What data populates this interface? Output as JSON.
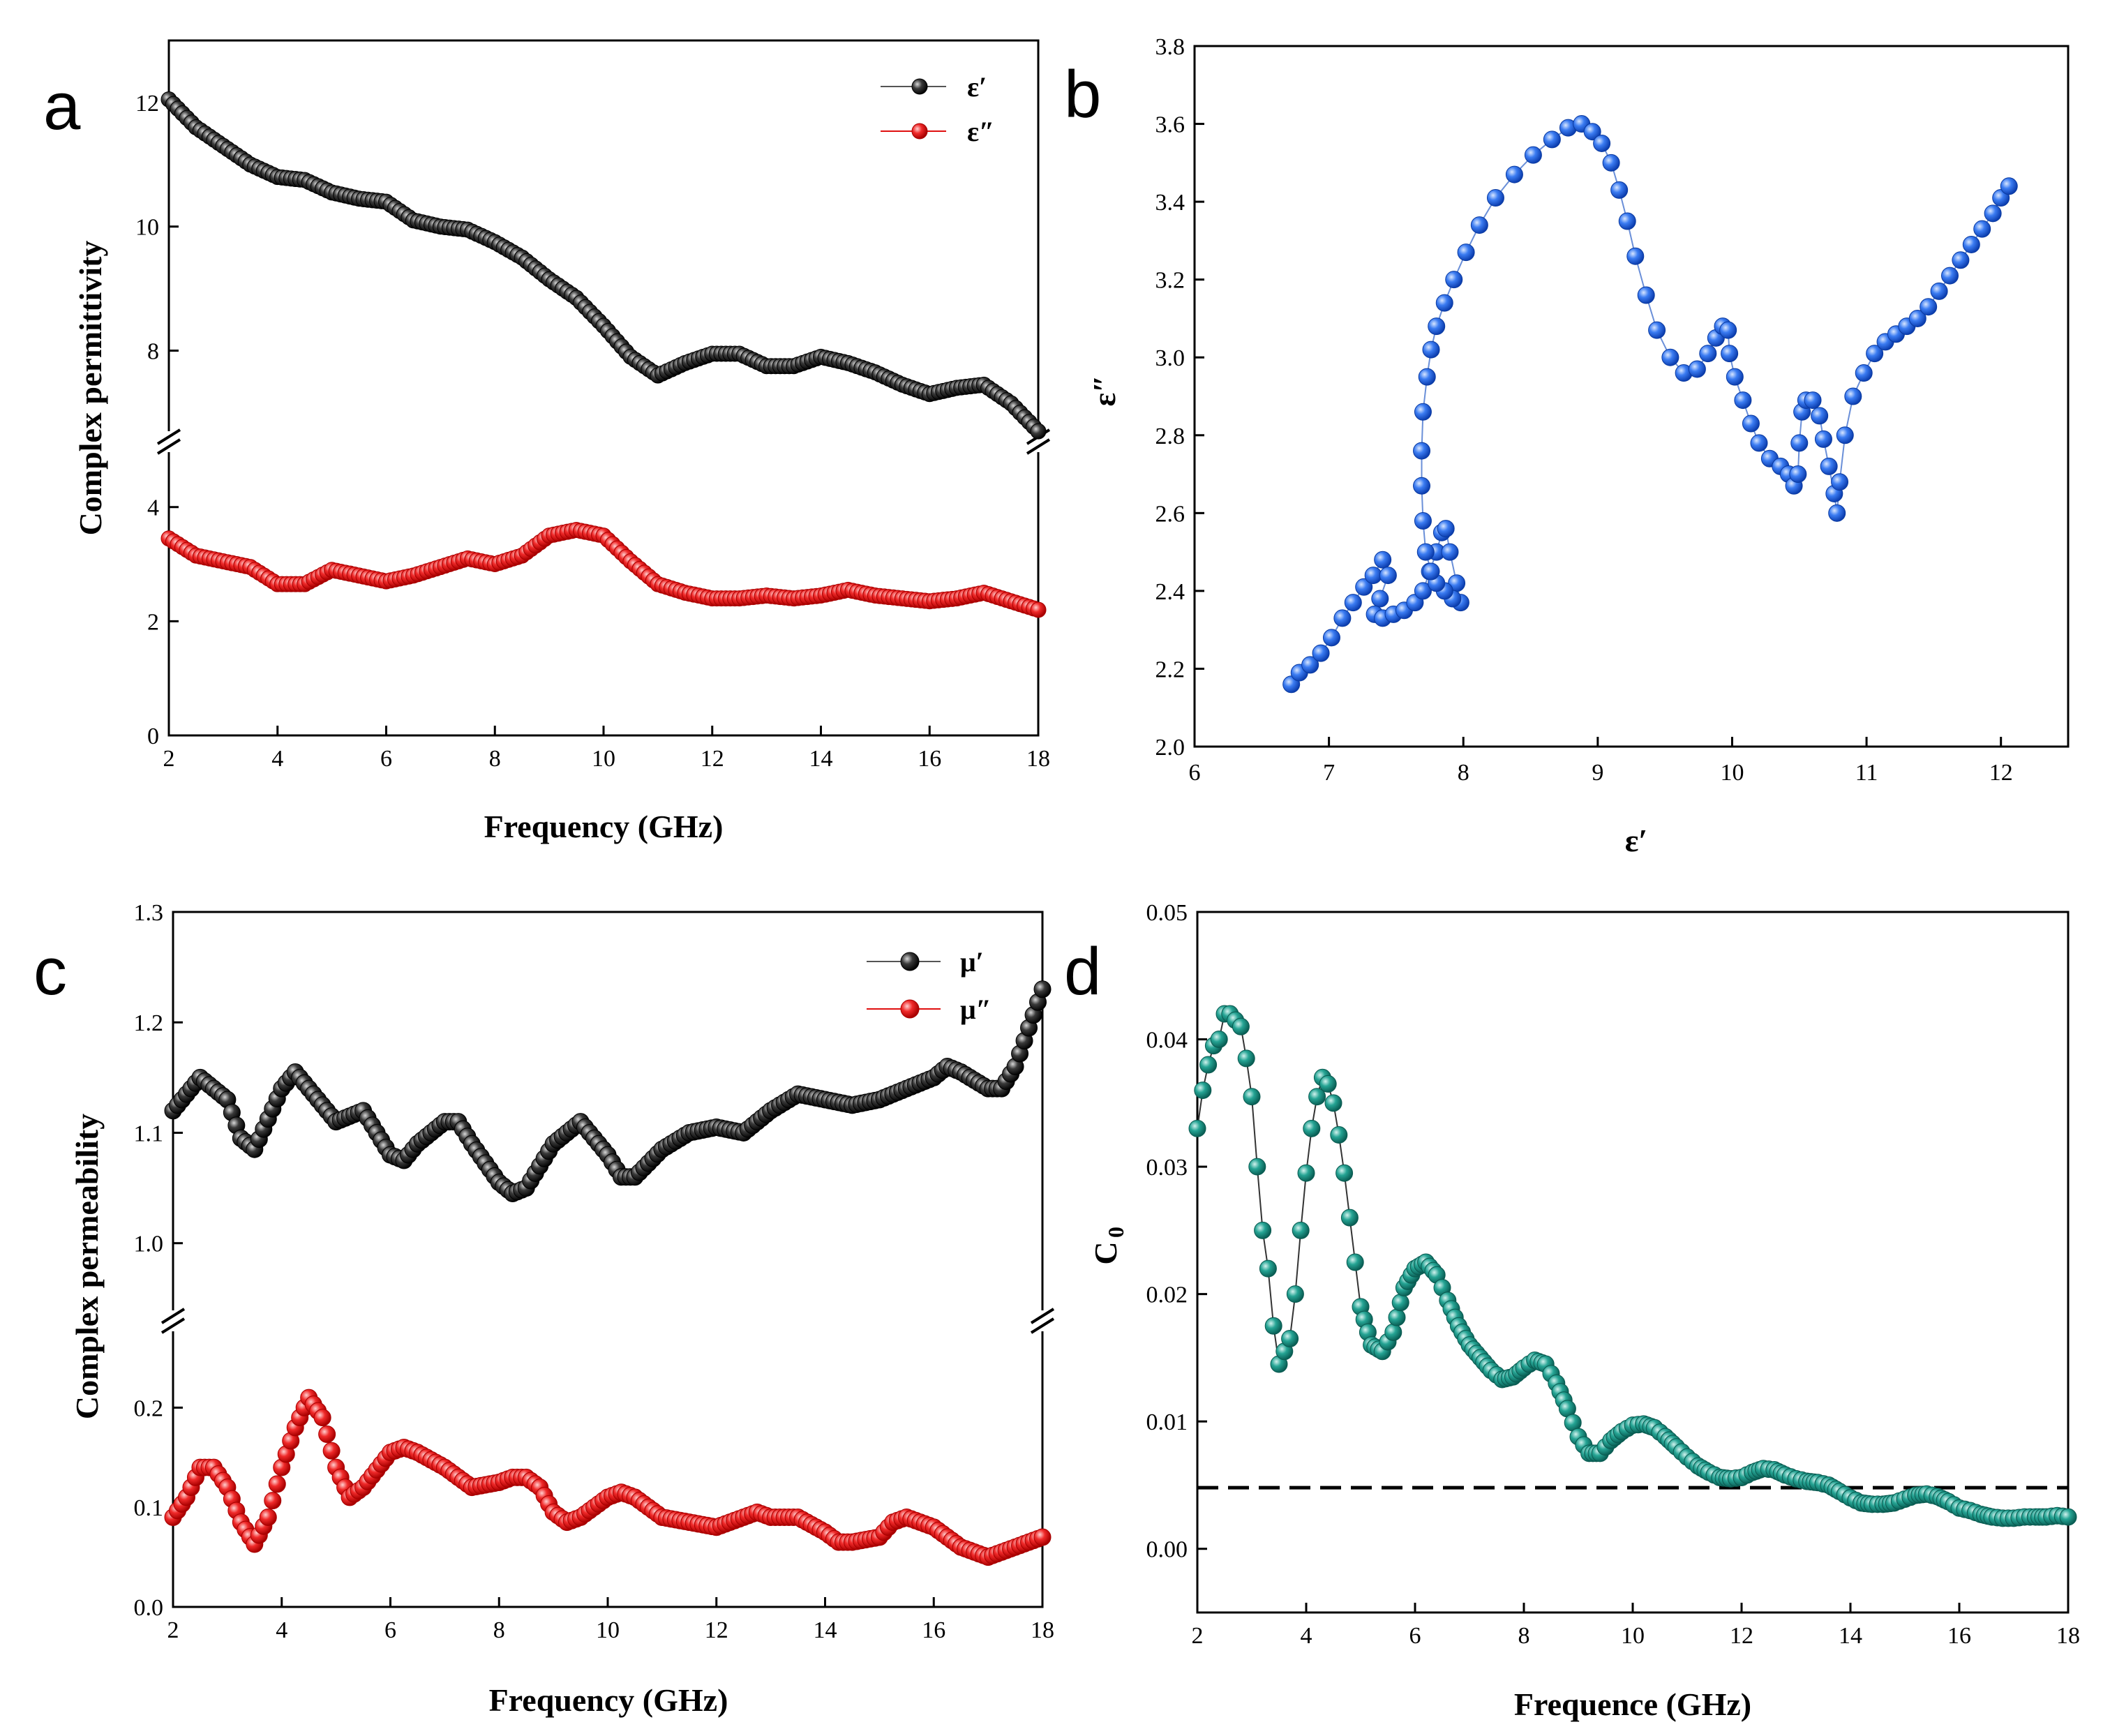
{
  "chart_data": [
    {
      "panel": "a",
      "type": "line",
      "xlabel": "Frequency (GHz)",
      "ylabel": "Complex permittivity",
      "xlim": [
        2,
        18
      ],
      "xticks": [
        "2",
        "4",
        "6",
        "8",
        "10",
        "12",
        "14",
        "16",
        "18"
      ],
      "ylim_lower": [
        0,
        4.4
      ],
      "yticks_lower": [
        "0",
        "2",
        "4"
      ],
      "ylim_upper": [
        6.6,
        13
      ],
      "yticks_upper": [
        "8",
        "10",
        "12"
      ],
      "axis_break": true,
      "colors": {
        "eps_real": "#1a1a1a",
        "eps_imag": "#e01010"
      },
      "series": [
        {
          "name": "ε′",
          "key": "eps_real",
          "x": [
            2,
            2.5,
            3,
            3.5,
            4,
            4.5,
            5,
            5.5,
            6,
            6.5,
            7,
            7.5,
            8,
            8.5,
            9,
            9.5,
            10,
            10.5,
            11,
            11.5,
            12,
            12.5,
            13,
            13.5,
            14,
            14.5,
            15,
            15.5,
            16,
            16.5,
            17,
            17.5,
            18
          ],
          "values": [
            12.05,
            11.6,
            11.3,
            11.0,
            10.8,
            10.75,
            10.55,
            10.45,
            10.4,
            10.1,
            10.0,
            9.95,
            9.75,
            9.5,
            9.15,
            8.85,
            8.4,
            7.9,
            7.6,
            7.8,
            7.95,
            7.95,
            7.75,
            7.75,
            7.9,
            7.8,
            7.65,
            7.45,
            7.3,
            7.4,
            7.45,
            7.15,
            6.7
          ]
        },
        {
          "name": "ε″",
          "key": "eps_imag",
          "x": [
            2,
            2.5,
            3,
            3.5,
            4,
            4.5,
            5,
            5.5,
            6,
            6.5,
            7,
            7.5,
            8,
            8.5,
            9,
            9.5,
            10,
            10.5,
            11,
            11.5,
            12,
            12.5,
            13,
            13.5,
            14,
            14.5,
            15,
            15.5,
            16,
            16.5,
            17,
            17.5,
            18
          ],
          "values": [
            3.45,
            3.15,
            3.05,
            2.95,
            2.65,
            2.65,
            2.9,
            2.8,
            2.7,
            2.8,
            2.95,
            3.1,
            3.0,
            3.15,
            3.5,
            3.6,
            3.5,
            3.05,
            2.65,
            2.5,
            2.4,
            2.4,
            2.45,
            2.4,
            2.45,
            2.55,
            2.45,
            2.4,
            2.35,
            2.4,
            2.5,
            2.35,
            2.2
          ]
        }
      ]
    },
    {
      "panel": "b",
      "type": "scatter",
      "xlabel": "ε′",
      "ylabel": "ε″",
      "xlim": [
        6,
        12.5
      ],
      "ylim": [
        2.0,
        3.8
      ],
      "xticks": [
        "6",
        "7",
        "8",
        "9",
        "10",
        "11",
        "12"
      ],
      "yticks": [
        "2.0",
        "2.2",
        "2.4",
        "2.6",
        "2.8",
        "3.0",
        "3.2",
        "3.4",
        "3.6",
        "3.8"
      ],
      "color": "#2266e8",
      "series": [
        {
          "name": "ε″ vs ε′",
          "x": [
            6.72,
            6.78,
            6.86,
            6.94,
            7.02,
            7.1,
            7.18,
            7.26,
            7.33,
            7.4,
            7.44,
            7.38,
            7.34,
            7.4,
            7.48,
            7.56,
            7.64,
            7.7,
            7.75,
            7.8,
            7.84,
            7.87,
            7.9,
            7.95,
            7.98,
            7.92,
            7.86,
            7.8,
            7.76,
            7.72,
            7.7,
            7.69,
            7.69,
            7.7,
            7.73,
            7.76,
            7.8,
            7.86,
            7.93,
            8.02,
            8.12,
            8.24,
            8.38,
            8.52,
            8.66,
            8.78,
            8.88,
            8.96,
            9.03,
            9.1,
            9.16,
            9.22,
            9.28,
            9.36,
            9.44,
            9.54,
            9.64,
            9.74,
            9.82,
            9.88,
            9.93,
            9.97,
            9.98,
            10.02,
            10.08,
            10.14,
            10.2,
            10.28,
            10.36,
            10.42,
            10.46,
            10.49,
            10.5,
            10.52,
            10.55,
            10.6,
            10.65,
            10.68,
            10.72,
            10.76,
            10.78,
            10.8,
            10.84,
            10.9,
            10.98,
            11.06,
            11.14,
            11.22,
            11.3,
            11.38,
            11.46,
            11.54,
            11.62,
            11.7,
            11.78,
            11.86,
            11.94,
            12.0,
            12.06
          ],
          "values": [
            2.16,
            2.19,
            2.21,
            2.24,
            2.28,
            2.33,
            2.37,
            2.41,
            2.44,
            2.48,
            2.44,
            2.38,
            2.34,
            2.33,
            2.34,
            2.35,
            2.37,
            2.4,
            2.45,
            2.5,
            2.55,
            2.56,
            2.5,
            2.42,
            2.37,
            2.38,
            2.4,
            2.42,
            2.45,
            2.5,
            2.58,
            2.67,
            2.76,
            2.86,
            2.95,
            3.02,
            3.08,
            3.14,
            3.2,
            3.27,
            3.34,
            3.41,
            3.47,
            3.52,
            3.56,
            3.59,
            3.6,
            3.58,
            3.55,
            3.5,
            3.43,
            3.35,
            3.26,
            3.16,
            3.07,
            3.0,
            2.96,
            2.97,
            3.01,
            3.05,
            3.08,
            3.07,
            3.01,
            2.95,
            2.89,
            2.83,
            2.78,
            2.74,
            2.72,
            2.7,
            2.67,
            2.7,
            2.78,
            2.86,
            2.89,
            2.89,
            2.85,
            2.79,
            2.72,
            2.65,
            2.6,
            2.68,
            2.8,
            2.9,
            2.96,
            3.01,
            3.04,
            3.06,
            3.08,
            3.1,
            3.13,
            3.17,
            3.21,
            3.25,
            3.29,
            3.33,
            3.37,
            3.41,
            3.44
          ]
        }
      ]
    },
    {
      "panel": "c",
      "type": "line",
      "xlabel": "Frequency (GHz)",
      "ylabel": "Complex permeability",
      "xlim": [
        2,
        18
      ],
      "xticks": [
        "2",
        "4",
        "6",
        "8",
        "10",
        "12",
        "14",
        "16",
        "18"
      ],
      "ylim_lower": [
        0,
        0.25
      ],
      "yticks_lower": [
        "0.0",
        "0.1",
        "0.2"
      ],
      "ylim_upper": [
        0.96,
        1.3
      ],
      "yticks_upper": [
        "1.0",
        "1.1",
        "1.2",
        "1.3"
      ],
      "axis_break": true,
      "colors": {
        "mu_real": "#1a1a1a",
        "mu_imag": "#e01010"
      },
      "series": [
        {
          "name": "μ′",
          "key": "mu_real",
          "x": [
            2,
            2.5,
            3,
            3.25,
            3.5,
            4,
            4.25,
            4.5,
            5,
            5.25,
            5.5,
            6,
            6.25,
            6.5,
            7,
            7.25,
            7.5,
            8,
            8.25,
            8.5,
            9,
            9.5,
            10,
            10.25,
            10.5,
            11,
            11.5,
            12,
            12.5,
            13,
            13.5,
            14,
            14.5,
            15,
            15.5,
            16,
            16.25,
            16.5,
            17,
            17.25,
            17.5,
            18
          ],
          "values": [
            1.12,
            1.15,
            1.13,
            1.095,
            1.085,
            1.14,
            1.155,
            1.14,
            1.11,
            1.115,
            1.12,
            1.08,
            1.075,
            1.09,
            1.11,
            1.11,
            1.09,
            1.055,
            1.045,
            1.05,
            1.09,
            1.11,
            1.08,
            1.06,
            1.06,
            1.085,
            1.1,
            1.105,
            1.1,
            1.12,
            1.135,
            1.13,
            1.125,
            1.13,
            1.14,
            1.15,
            1.16,
            1.155,
            1.14,
            1.14,
            1.16,
            1.23
          ]
        },
        {
          "name": "μ″",
          "key": "mu_imag",
          "x": [
            2,
            2.25,
            2.5,
            2.75,
            3,
            3.25,
            3.5,
            3.75,
            4,
            4.25,
            4.5,
            4.75,
            5,
            5.25,
            5.5,
            6,
            6.25,
            6.5,
            7,
            7.5,
            8,
            8.25,
            8.5,
            8.75,
            9,
            9.25,
            9.5,
            10,
            10.25,
            10.5,
            11,
            11.5,
            12,
            12.5,
            12.75,
            13,
            13.5,
            14,
            14.25,
            14.5,
            15,
            15.25,
            15.5,
            16,
            16.5,
            17,
            17.25,
            17.5,
            18
          ],
          "values": [
            0.09,
            0.11,
            0.14,
            0.14,
            0.12,
            0.085,
            0.063,
            0.09,
            0.14,
            0.18,
            0.21,
            0.19,
            0.14,
            0.11,
            0.12,
            0.155,
            0.16,
            0.155,
            0.14,
            0.12,
            0.125,
            0.13,
            0.13,
            0.12,
            0.095,
            0.085,
            0.09,
            0.11,
            0.115,
            0.11,
            0.09,
            0.085,
            0.08,
            0.09,
            0.095,
            0.09,
            0.09,
            0.075,
            0.065,
            0.065,
            0.07,
            0.085,
            0.09,
            0.08,
            0.06,
            0.05,
            0.055,
            0.06,
            0.07
          ]
        }
      ]
    },
    {
      "panel": "d",
      "type": "scatter",
      "xlabel": "Frequence (GHz)",
      "ylabel": "C",
      "ylabel_sub": "0",
      "xlim": [
        2,
        18
      ],
      "ylim": [
        -0.005,
        0.05
      ],
      "xticks": [
        "2",
        "4",
        "6",
        "8",
        "10",
        "12",
        "14",
        "16",
        "18"
      ],
      "yticks": [
        "0.00",
        "0.01",
        "0.02",
        "0.03",
        "0.04",
        "0.05"
      ],
      "reference_line": 0.0048,
      "color": "#1a9a8c",
      "series": [
        {
          "name": "C0",
          "x": [
            2,
            2.1,
            2.2,
            2.3,
            2.4,
            2.5,
            2.6,
            2.7,
            2.8,
            2.9,
            3.0,
            3.1,
            3.2,
            3.3,
            3.4,
            3.5,
            3.6,
            3.7,
            3.8,
            3.9,
            4.0,
            4.1,
            4.2,
            4.3,
            4.4,
            4.5,
            4.6,
            4.7,
            4.8,
            4.9,
            5.0,
            5.2,
            5.4,
            5.6,
            5.8,
            6.0,
            6.2,
            6.4,
            6.6,
            6.8,
            7.0,
            7.2,
            7.4,
            7.6,
            7.8,
            8.0,
            8.2,
            8.4,
            8.6,
            8.8,
            9.0,
            9.2,
            9.4,
            9.6,
            9.8,
            10.0,
            10.2,
            10.4,
            10.6,
            10.8,
            11.0,
            11.2,
            11.4,
            11.6,
            11.8,
            12.0,
            12.2,
            12.4,
            12.6,
            12.8,
            13.0,
            13.2,
            13.4,
            13.6,
            13.8,
            14.0,
            14.2,
            14.4,
            14.6,
            14.8,
            15.0,
            15.2,
            15.4,
            15.6,
            15.8,
            16.0,
            16.2,
            16.4,
            16.6,
            16.8,
            17.0,
            17.2,
            17.4,
            17.6,
            17.8,
            18.0
          ],
          "values": [
            0.033,
            0.036,
            0.038,
            0.0395,
            0.04,
            0.042,
            0.042,
            0.0415,
            0.041,
            0.0385,
            0.0355,
            0.03,
            0.025,
            0.022,
            0.0175,
            0.0145,
            0.0155,
            0.0165,
            0.02,
            0.025,
            0.0295,
            0.033,
            0.0355,
            0.037,
            0.0365,
            0.035,
            0.0325,
            0.0295,
            0.026,
            0.0225,
            0.019,
            0.016,
            0.0155,
            0.017,
            0.0205,
            0.022,
            0.0225,
            0.0215,
            0.0195,
            0.0175,
            0.016,
            0.015,
            0.014,
            0.0133,
            0.0135,
            0.0142,
            0.0148,
            0.0145,
            0.013,
            0.011,
            0.0088,
            0.0075,
            0.0075,
            0.0085,
            0.0092,
            0.0097,
            0.0098,
            0.0095,
            0.0088,
            0.008,
            0.0072,
            0.0065,
            0.006,
            0.0056,
            0.0055,
            0.0056,
            0.006,
            0.0063,
            0.0062,
            0.0058,
            0.0055,
            0.0053,
            0.0052,
            0.005,
            0.0045,
            0.004,
            0.0036,
            0.0035,
            0.0035,
            0.0036,
            0.0039,
            0.0042,
            0.0043,
            0.0041,
            0.0037,
            0.0032,
            0.003,
            0.0027,
            0.0025,
            0.0024,
            0.0024,
            0.0025,
            0.0025,
            0.0025,
            0.0026,
            0.0025
          ]
        }
      ]
    }
  ]
}
